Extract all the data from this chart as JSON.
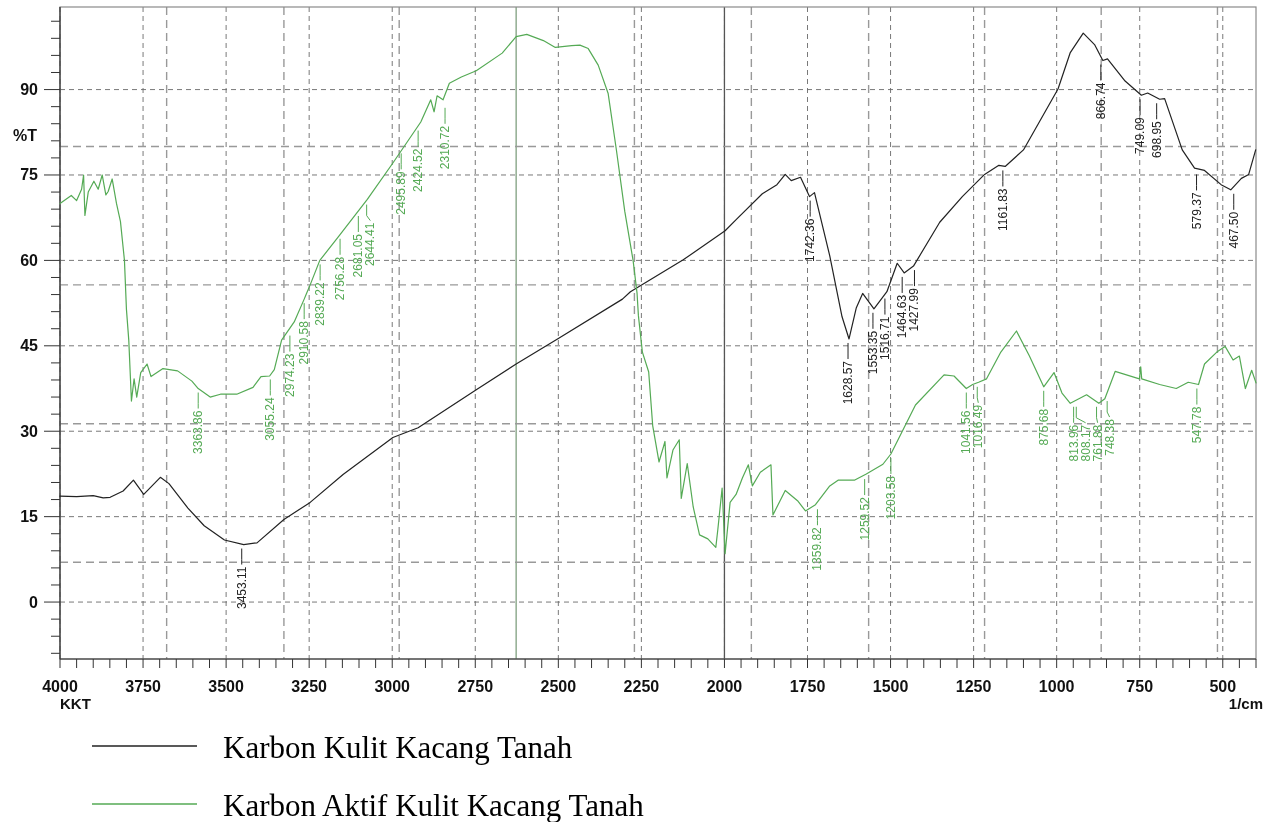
{
  "chart_data": {
    "type": "line",
    "xlabel": "1/cm",
    "ylabel": "%T",
    "xlim": [
      4000,
      400
    ],
    "ylim": [
      -10,
      104.5
    ],
    "xticks": [
      4000,
      {
        "value": 3950,
        "label": null
      },
      {
        "value": 3900,
        "label": null
      },
      {
        "value": 3850,
        "label": null
      },
      {
        "value": 3800,
        "label": null
      },
      3750,
      {
        "value": 3700,
        "label": null
      },
      {
        "value": 3650,
        "label": null
      },
      {
        "value": 3600,
        "label": null
      },
      {
        "value": 3550,
        "label": null
      },
      3500,
      {
        "value": 3450,
        "label": null
      },
      {
        "value": 3400,
        "label": null
      },
      {
        "value": 3350,
        "label": null
      },
      {
        "value": 3300,
        "label": null
      },
      3250,
      {
        "value": 3200,
        "label": null
      },
      {
        "value": 3150,
        "label": null
      },
      {
        "value": 3100,
        "label": null
      },
      {
        "value": 3050,
        "label": null
      },
      3000,
      {
        "value": 2950,
        "label": null
      },
      {
        "value": 2900,
        "label": null
      },
      {
        "value": 2850,
        "label": null
      },
      {
        "value": 2800,
        "label": null
      },
      2750,
      {
        "value": 2700,
        "label": null
      },
      {
        "value": 2650,
        "label": null
      },
      {
        "value": 2600,
        "label": null
      },
      {
        "value": 2550,
        "label": null
      },
      2500,
      {
        "value": 2450,
        "label": null
      },
      {
        "value": 2400,
        "label": null
      },
      {
        "value": 2350,
        "label": null
      },
      {
        "value": 2300,
        "label": null
      },
      2250,
      {
        "value": 2200,
        "label": null
      },
      {
        "value": 2150,
        "label": null
      },
      {
        "value": 2100,
        "label": null
      },
      {
        "value": 2050,
        "label": null
      },
      2000,
      {
        "value": 1950,
        "label": null
      },
      {
        "value": 1900,
        "label": null
      },
      {
        "value": 1850,
        "label": null
      },
      {
        "value": 1800,
        "label": null
      },
      1750,
      {
        "value": 1700,
        "label": null
      },
      {
        "value": 1650,
        "label": null
      },
      {
        "value": 1600,
        "label": null
      },
      {
        "value": 1550,
        "label": null
      },
      1500,
      {
        "value": 1450,
        "label": null
      },
      {
        "value": 1400,
        "label": null
      },
      {
        "value": 1350,
        "label": null
      },
      {
        "value": 1300,
        "label": null
      },
      1250,
      {
        "value": 1200,
        "label": null
      },
      {
        "value": 1150,
        "label": null
      },
      {
        "value": 1100,
        "label": null
      },
      {
        "value": 1050,
        "label": null
      },
      1000,
      {
        "value": 950,
        "label": null
      },
      {
        "value": 900,
        "label": null
      },
      {
        "value": 850,
        "label": null
      },
      {
        "value": 800,
        "label": null
      },
      750,
      {
        "value": 700,
        "label": null
      },
      {
        "value": 650,
        "label": null
      },
      {
        "value": 600,
        "label": null
      },
      {
        "value": 550,
        "label": null
      },
      500,
      {
        "value": 450,
        "label": null
      },
      {
        "value": 400,
        "label": null
      }
    ],
    "yticks": [
      {
        "value": -9,
        "label": null
      },
      {
        "value": -6,
        "label": null
      },
      {
        "value": -3,
        "label": null
      },
      0,
      {
        "value": 3,
        "label": null
      },
      {
        "value": 6,
        "label": null
      },
      {
        "value": 9,
        "label": null
      },
      {
        "value": 12,
        "label": null
      },
      15,
      {
        "value": 18,
        "label": null
      },
      {
        "value": 21,
        "label": null
      },
      {
        "value": 24,
        "label": null
      },
      {
        "value": 27,
        "label": null
      },
      30,
      {
        "value": 33,
        "label": null
      },
      {
        "value": 36,
        "label": null
      },
      {
        "value": 39,
        "label": null
      },
      {
        "value": 42,
        "label": null
      },
      45,
      {
        "value": 48,
        "label": null
      },
      {
        "value": 51,
        "label": null
      },
      {
        "value": 54,
        "label": null
      },
      {
        "value": 57,
        "label": null
      },
      60,
      {
        "value": 63,
        "label": null
      },
      {
        "value": 66,
        "label": null
      },
      {
        "value": 69,
        "label": null
      },
      {
        "value": 72,
        "label": null
      },
      75,
      {
        "value": 78,
        "label": null
      },
      {
        "value": 81,
        "label": null
      },
      {
        "value": 84,
        "label": null
      },
      {
        "value": 87,
        "label": null
      },
      90,
      {
        "value": 93,
        "label": null
      },
      {
        "value": 96,
        "label": null
      },
      {
        "value": 99,
        "label": null
      },
      {
        "value": 102,
        "label": null
      }
    ],
    "grid": true,
    "legend": "bottom",
    "ref_lines": [
      {
        "axis": "x",
        "value": 2000,
        "color": "#555555",
        "line_style": "solid"
      },
      {
        "axis": "x",
        "value": 2627,
        "color": "#7f9f7f",
        "line_style": "solid"
      },
      {
        "axis": "x",
        "value": 3679,
        "color": "#999999",
        "line_style": "dashed"
      },
      {
        "axis": "x",
        "value": 3326,
        "color": "#999999",
        "line_style": "dashed"
      },
      {
        "axis": "x",
        "value": 2979,
        "color": "#999999",
        "line_style": "dashed"
      },
      {
        "axis": "x",
        "value": 2271,
        "color": "#999999",
        "line_style": "dashed"
      },
      {
        "axis": "x",
        "value": 1919,
        "color": "#999999",
        "line_style": "dashed"
      },
      {
        "axis": "x",
        "value": 1566,
        "color": "#999999",
        "line_style": "dashed"
      },
      {
        "axis": "x",
        "value": 1217,
        "color": "#999999",
        "line_style": "dashed"
      },
      {
        "axis": "x",
        "value": 866,
        "color": "#999999",
        "line_style": "dashed"
      },
      {
        "axis": "x",
        "value": 516,
        "color": "#999999",
        "line_style": "dashed"
      },
      {
        "axis": "y",
        "value": 80,
        "color": "#999999",
        "line_style": "dashed"
      },
      {
        "axis": "y",
        "value": 55.7,
        "color": "#999999",
        "line_style": "dashed"
      },
      {
        "axis": "y",
        "value": 31.3,
        "color": "#999999",
        "line_style": "dashed"
      },
      {
        "axis": "y",
        "value": 7,
        "color": "#999999",
        "line_style": "dashed"
      }
    ],
    "annotations": [
      "KKT",
      {
        "text": "3453.11",
        "x": 3453,
        "y": 10.1
      },
      {
        "text": "1742.36",
        "x": 1742,
        "y": 71.2
      },
      {
        "text": "1628.57",
        "x": 1628,
        "y": 46.2
      },
      {
        "text": "1553.35",
        "x": 1553,
        "y": 51.5
      },
      {
        "text": "1516.71",
        "x": 1517,
        "y": 54.0
      },
      {
        "text": "1464.63",
        "x": 1465,
        "y": 57.8
      },
      {
        "text": "1427.99",
        "x": 1428,
        "y": 59.0
      },
      {
        "text": "1161.83",
        "x": 1162,
        "y": 76.5
      },
      {
        "text": "866.74",
        "x": 867,
        "y": 95.1
      },
      {
        "text": "749.09",
        "x": 749,
        "y": 89.0
      },
      {
        "text": "698.95",
        "x": 699,
        "y": 88.3
      },
      {
        "text": "579.37",
        "x": 579,
        "y": 75.8
      },
      {
        "text": "467.50",
        "x": 467,
        "y": 72.4
      },
      {
        "text": "3363.86",
        "x": 3584,
        "y": 37.5
      },
      {
        "text": "3055.24",
        "x": 3367,
        "y": 39.8
      },
      {
        "text": "2974.23",
        "x": 3308,
        "y": 47.5
      },
      {
        "text": "2910.58",
        "x": 3265,
        "y": 53.2
      },
      {
        "text": "2839.22",
        "x": 3217,
        "y": 60.0
      },
      {
        "text": "2756.28",
        "x": 3157,
        "y": 64.5
      },
      {
        "text": "2681.05",
        "x": 3102,
        "y": 68.5
      },
      {
        "text": "2644.41",
        "x": 3077,
        "y": 70.5
      },
      {
        "text": "2495.89",
        "x": 2973,
        "y": 79.5
      },
      {
        "text": "2424.52",
        "x": 2922,
        "y": 83.5
      },
      {
        "text": "2310.72",
        "x": 2841,
        "y": 87.5
      },
      {
        "text": "1359.82",
        "x": 1720,
        "y": 17.0
      },
      {
        "text": "1259.52",
        "x": 1578,
        "y": 22.3
      },
      {
        "text": "1203.58",
        "x": 1499,
        "y": 26.0
      },
      {
        "text": "1041.56",
        "x": 1272,
        "y": 37.5
      },
      {
        "text": "1016.49",
        "x": 1239,
        "y": 38.5
      },
      {
        "text": "875.68",
        "x": 1039,
        "y": 37.8
      },
      {
        "text": "813.96",
        "x": 949,
        "y": 35.0
      },
      {
        "text": "808.17",
        "x": 941,
        "y": 35.0
      },
      {
        "text": "761.88",
        "x": 880,
        "y": 35.0
      },
      {
        "text": "748.38",
        "x": 848,
        "y": 36.0
      },
      {
        "text": "547.78",
        "x": 578,
        "y": 38.2
      }
    ],
    "series": [
      {
        "name": "Karbon Kulit Kacang Tanah",
        "color": "#222222",
        "x": [
          4000,
          3950,
          3900,
          3870,
          3849,
          3810,
          3779,
          3748,
          3698,
          3672,
          3615,
          3566,
          3505,
          3447,
          3407,
          3326,
          3247,
          3148,
          2998,
          2922,
          2747,
          2627,
          2500,
          2307,
          2283,
          2124,
          1998,
          1964,
          1886,
          1842,
          1817,
          1799,
          1771,
          1744,
          1729,
          1683,
          1646,
          1625,
          1603,
          1584,
          1550,
          1511,
          1480,
          1459,
          1431,
          1352,
          1284,
          1217,
          1174,
          1155,
          1100,
          996,
          959,
          920,
          886,
          861,
          847,
          794,
          745,
          726,
          690,
          675,
          622,
          585,
          555,
          505,
          476,
          444,
          422,
          401
        ],
        "values": [
          18.6,
          18.5,
          18.7,
          18.3,
          18.4,
          19.5,
          21.4,
          18.9,
          21.9,
          20.8,
          16.5,
          13.4,
          10.9,
          10.1,
          10.4,
          14.5,
          17.5,
          22.4,
          28.9,
          30.6,
          37.3,
          41.8,
          46.3,
          53.2,
          54.5,
          60.1,
          65.2,
          67.2,
          71.7,
          73.3,
          75.1,
          74.0,
          74.6,
          71.2,
          71.9,
          60.8,
          50.1,
          46.2,
          51.7,
          54.2,
          51.5,
          54.5,
          59.5,
          57.8,
          59.0,
          66.7,
          71.2,
          75.1,
          76.7,
          76.5,
          79.4,
          90.1,
          96.5,
          99.9,
          97.9,
          95.1,
          95.4,
          91.5,
          89.0,
          89.4,
          88.3,
          88.4,
          79.4,
          76.2,
          75.8,
          73.3,
          72.4,
          74.4,
          75.1,
          79.4
        ]
      },
      {
        "name": "Karbon Aktif Kulit Kacang Tanah",
        "color": "#55aa55",
        "x": [
          4000,
          3966,
          3950,
          3935,
          3929,
          3925,
          3915,
          3898,
          3885,
          3873,
          3862,
          3855,
          3843,
          3830,
          3818,
          3806,
          3800,
          3793,
          3785,
          3777,
          3769,
          3757,
          3738,
          3726,
          3690,
          3646,
          3603,
          3584,
          3548,
          3517,
          3468,
          3419,
          3395,
          3369,
          3355,
          3333,
          3295,
          3265,
          3258,
          3247,
          3218,
          3160,
          3075,
          2998,
          2914,
          2884,
          2874,
          2865,
          2847,
          2828,
          2792,
          2747,
          2669,
          2627,
          2595,
          2545,
          2509,
          2460,
          2435,
          2410,
          2380,
          2350,
          2325,
          2300,
          2275,
          2263,
          2259,
          2247,
          2228,
          2216,
          2197,
          2179,
          2173,
          2155,
          2136,
          2130,
          2112,
          2094,
          2075,
          2050,
          2026,
          2020,
          2007,
          1998,
          1983,
          1965,
          1946,
          1928,
          1916,
          1892,
          1860,
          1854,
          1817,
          1780,
          1756,
          1726,
          1683,
          1658,
          1609,
          1573,
          1523,
          1499,
          1425,
          1339,
          1309,
          1272,
          1253,
          1235,
          1211,
          1168,
          1121,
          1082,
          1039,
          1008,
          984,
          959,
          910,
          873,
          855,
          824,
          751,
          747,
          744,
          690,
          640,
          604,
          573,
          555,
          518,
          493,
          469,
          450,
          432,
          413,
          400
        ],
        "values": [
          70.0,
          71.4,
          70.5,
          72.5,
          75.0,
          67.9,
          72.0,
          73.9,
          72.5,
          75.0,
          71.5,
          72.1,
          74.3,
          70.0,
          66.8,
          60.0,
          51.4,
          46.0,
          35.3,
          39.2,
          36.0,
          40.3,
          41.8,
          39.6,
          41.0,
          40.6,
          38.8,
          37.5,
          36.0,
          36.5,
          36.5,
          37.7,
          39.6,
          39.7,
          40.8,
          46.0,
          49.2,
          53.2,
          54.2,
          55.7,
          60.0,
          64.3,
          70.7,
          77.1,
          84.3,
          88.2,
          86.1,
          88.9,
          88.2,
          91.1,
          92.2,
          93.3,
          96.4,
          99.3,
          99.7,
          98.6,
          97.4,
          97.7,
          97.8,
          97.2,
          94.3,
          89.3,
          79.3,
          68.6,
          60.0,
          54.2,
          50.3,
          43.9,
          40.4,
          31.0,
          24.6,
          28.2,
          21.8,
          26.7,
          28.5,
          18.2,
          24.3,
          16.7,
          11.8,
          11.1,
          9.6,
          12.7,
          20.0,
          8.5,
          17.5,
          18.9,
          21.8,
          24.1,
          20.4,
          22.8,
          24.1,
          15.3,
          19.6,
          17.8,
          16.0,
          17.1,
          20.4,
          21.4,
          21.4,
          22.5,
          24.2,
          26.0,
          34.6,
          39.9,
          39.7,
          37.5,
          38.2,
          38.6,
          39.2,
          43.9,
          47.6,
          43.2,
          37.8,
          40.3,
          36.7,
          34.9,
          36.4,
          34.9,
          35.7,
          40.5,
          39.2,
          41.3,
          39.2,
          38.2,
          37.5,
          38.6,
          38.2,
          41.8,
          43.9,
          44.9,
          42.5,
          43.2,
          37.5,
          40.7,
          38.5
        ]
      }
    ]
  }
}
